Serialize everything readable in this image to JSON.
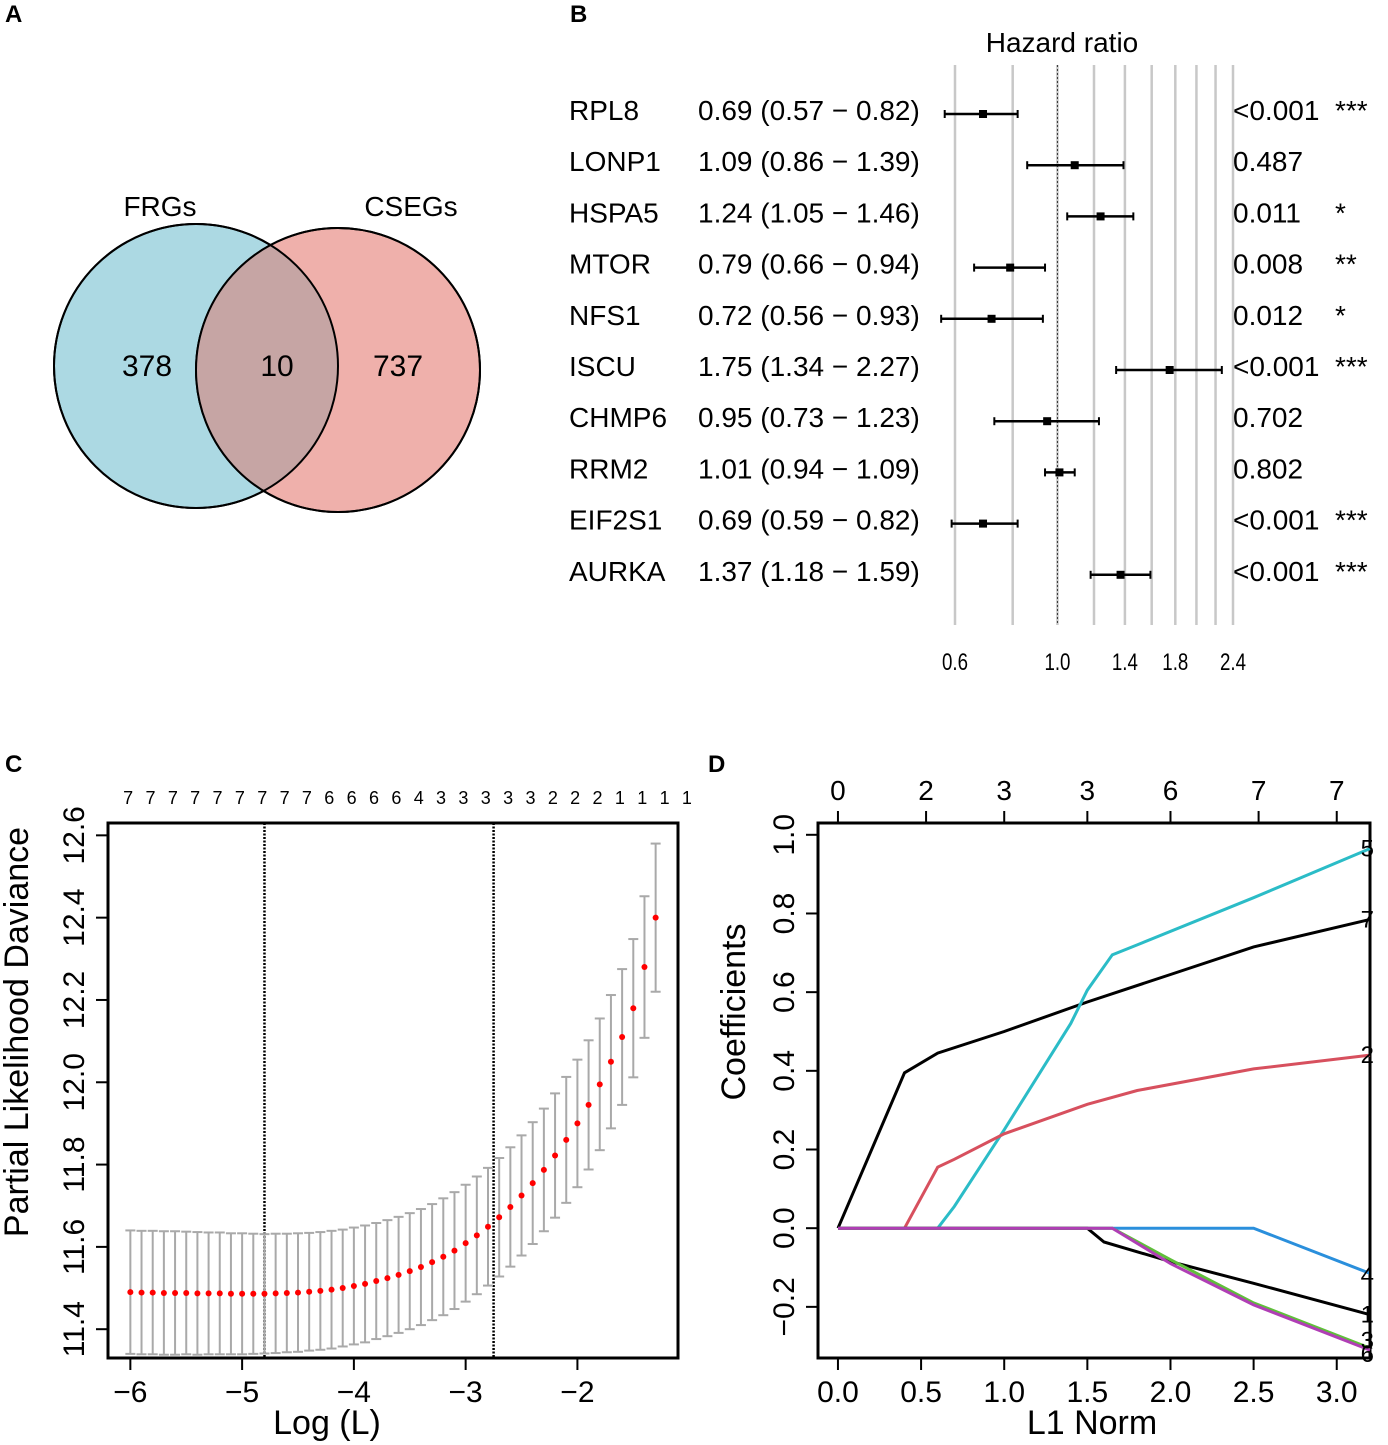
{
  "panels": {
    "A": {
      "letter": "A",
      "chart_data": {
        "type": "venn",
        "sets": [
          {
            "name": "FRGs",
            "unique_count": "378",
            "color": "#acd9e3"
          },
          {
            "name": "CSEGs",
            "unique_count": "737",
            "color": "#efb0ab"
          }
        ],
        "intersection_count": "10",
        "intersection_color": "#c6a5a4"
      }
    },
    "B": {
      "letter": "B",
      "chart_data": {
        "type": "forest",
        "title": "Hazard ratio",
        "reference_value": 1.0,
        "x_scale": "log",
        "xlim": [
          0.6,
          2.4
        ],
        "ticks": [
          0.6,
          1.0,
          1.4,
          1.8,
          2.4
        ],
        "tick_labels": [
          "0.6",
          "1.0",
          "1.4",
          "1.8",
          "2.4"
        ],
        "gridlines": [
          0.6,
          0.8,
          1.0,
          1.2,
          1.4,
          1.6,
          1.8,
          2.0,
          2.2,
          2.4
        ],
        "rows": [
          {
            "gene": "RPL8",
            "hr": 0.69,
            "lo": 0.57,
            "hi": 0.82,
            "label": "0.69 (0.57 − 0.82)",
            "p": "<0.001",
            "sig": "***"
          },
          {
            "gene": "LONP1",
            "hr": 1.09,
            "lo": 0.86,
            "hi": 1.39,
            "label": "1.09 (0.86 − 1.39)",
            "p": "0.487",
            "sig": ""
          },
          {
            "gene": "HSPA5",
            "hr": 1.24,
            "lo": 1.05,
            "hi": 1.46,
            "label": "1.24 (1.05 − 1.46)",
            "p": "0.011",
            "sig": "*"
          },
          {
            "gene": "MTOR",
            "hr": 0.79,
            "lo": 0.66,
            "hi": 0.94,
            "label": "0.79 (0.66 − 0.94)",
            "p": "0.008",
            "sig": "**"
          },
          {
            "gene": "NFS1",
            "hr": 0.72,
            "lo": 0.56,
            "hi": 0.93,
            "label": "0.72 (0.56 − 0.93)",
            "p": "0.012",
            "sig": "*"
          },
          {
            "gene": "ISCU",
            "hr": 1.75,
            "lo": 1.34,
            "hi": 2.27,
            "label": "1.75 (1.34 − 2.27)",
            "p": "<0.001",
            "sig": "***"
          },
          {
            "gene": "CHMP6",
            "hr": 0.95,
            "lo": 0.73,
            "hi": 1.23,
            "label": "0.95 (0.73 − 1.23)",
            "p": "0.702",
            "sig": ""
          },
          {
            "gene": "RRM2",
            "hr": 1.01,
            "lo": 0.94,
            "hi": 1.09,
            "label": "1.01 (0.94 − 1.09)",
            "p": "0.802",
            "sig": ""
          },
          {
            "gene": "EIF2S1",
            "hr": 0.69,
            "lo": 0.59,
            "hi": 0.82,
            "label": "0.69 (0.59 − 0.82)",
            "p": "<0.001",
            "sig": "***"
          },
          {
            "gene": "AURKA",
            "hr": 1.37,
            "lo": 1.18,
            "hi": 1.59,
            "label": "1.37 (1.18 − 1.59)",
            "p": "<0.001",
            "sig": "***"
          }
        ]
      }
    },
    "C": {
      "letter": "C",
      "chart_data": {
        "type": "scatter",
        "xlabel": "Log (L)",
        "ylabel": "Partial Likelihood Daviance",
        "xlim": [
          -6.2,
          -1.1
        ],
        "ylim": [
          11.33,
          12.63
        ],
        "xticks": [
          -6,
          -5,
          -4,
          -3,
          -2
        ],
        "xtick_labels": [
          "−6",
          "−5",
          "−4",
          "−3",
          "−2"
        ],
        "yticks": [
          11.4,
          11.6,
          11.8,
          12.0,
          12.2,
          12.4,
          12.6
        ],
        "ytick_labels": [
          "11.4",
          "11.6",
          "11.8",
          "12.0",
          "12.2",
          "12.4",
          "12.6"
        ],
        "top_counts": [
          "7",
          "7",
          "7",
          "7",
          "7",
          "7",
          "7",
          "7",
          "7",
          "6",
          "6",
          "6",
          "6",
          "4",
          "3",
          "3",
          "3",
          "3",
          "3",
          "2",
          "2",
          "2",
          "1",
          "1",
          "1",
          "1"
        ],
        "top_count_x": [
          -6.02,
          -5.82,
          -5.62,
          -5.42,
          -5.22,
          -5.02,
          -4.82,
          -4.62,
          -4.42,
          -4.22,
          -4.02,
          -3.82,
          -3.62,
          -3.42,
          -3.22,
          -3.02,
          -2.82,
          -2.62,
          -2.42,
          -2.22,
          -2.02,
          -1.82,
          -1.62,
          -1.42,
          -1.22,
          -1.02
        ],
        "vlines": [
          -4.8,
          -2.75
        ],
        "points_x": [
          -6.0,
          -5.9,
          -5.8,
          -5.7,
          -5.6,
          -5.5,
          -5.4,
          -5.3,
          -5.2,
          -5.1,
          -5.0,
          -4.9,
          -4.8,
          -4.7,
          -4.6,
          -4.5,
          -4.4,
          -4.3,
          -4.2,
          -4.1,
          -4.0,
          -3.9,
          -3.8,
          -3.7,
          -3.6,
          -3.5,
          -3.4,
          -3.3,
          -3.2,
          -3.1,
          -3.0,
          -2.9,
          -2.8,
          -2.7,
          -2.6,
          -2.5,
          -2.4,
          -2.3,
          -2.2,
          -2.1,
          -2.0,
          -1.9,
          -1.8,
          -1.7,
          -1.6,
          -1.5,
          -1.4,
          -1.3
        ],
        "points_y": [
          11.49,
          11.489,
          11.489,
          11.488,
          11.488,
          11.488,
          11.487,
          11.487,
          11.487,
          11.486,
          11.486,
          11.486,
          11.486,
          11.487,
          11.488,
          11.489,
          11.491,
          11.493,
          11.496,
          11.5,
          11.505,
          11.51,
          11.517,
          11.524,
          11.532,
          11.541,
          11.551,
          11.563,
          11.576,
          11.591,
          11.609,
          11.628,
          11.649,
          11.672,
          11.697,
          11.725,
          11.755,
          11.787,
          11.822,
          11.86,
          11.9,
          11.945,
          11.995,
          12.05,
          12.11,
          12.18,
          12.28,
          12.4
        ],
        "err_half": [
          0.15,
          0.15,
          0.15,
          0.15,
          0.15,
          0.149,
          0.149,
          0.148,
          0.148,
          0.147,
          0.147,
          0.146,
          0.145,
          0.145,
          0.144,
          0.144,
          0.143,
          0.143,
          0.143,
          0.142,
          0.142,
          0.142,
          0.141,
          0.141,
          0.141,
          0.141,
          0.141,
          0.141,
          0.142,
          0.142,
          0.142,
          0.143,
          0.143,
          0.144,
          0.145,
          0.146,
          0.148,
          0.149,
          0.151,
          0.153,
          0.155,
          0.157,
          0.16,
          0.162,
          0.165,
          0.168,
          0.172,
          0.18
        ],
        "point_color": "#ff0000",
        "errorbar_color": "#a9a9a9"
      }
    },
    "D": {
      "letter": "D",
      "chart_data": {
        "type": "line",
        "xlabel": "L1 Norm",
        "ylabel": "Coefficients",
        "xlim": [
          -0.12,
          3.2
        ],
        "ylim": [
          -0.33,
          1.03
        ],
        "xticks": [
          0.0,
          0.5,
          1.0,
          1.5,
          2.0,
          2.5,
          3.0
        ],
        "xtick_labels": [
          "0.0",
          "0.5",
          "1.0",
          "1.5",
          "2.0",
          "2.5",
          "3.0"
        ],
        "yticks": [
          -0.2,
          0.0,
          0.2,
          0.4,
          0.6,
          0.8,
          1.0
        ],
        "ytick_labels": [
          "−0.2",
          "0.0",
          "0.2",
          "0.4",
          "0.6",
          "0.8",
          "1.0"
        ],
        "top_ticks_x": [
          0.0,
          0.53,
          1.0,
          1.5,
          2.0,
          2.53,
          3.0
        ],
        "top_tick_labels": [
          "0",
          "2",
          "3",
          "3",
          "6",
          "7",
          "7"
        ],
        "series": [
          {
            "name": "7",
            "color": "#000000",
            "x": [
              0.0,
              0.4,
              0.6,
              1.0,
              1.5,
              2.0,
              2.5,
              3.2
            ],
            "y": [
              0.0,
              0.395,
              0.445,
              0.5,
              0.575,
              0.645,
              0.715,
              0.785
            ]
          },
          {
            "name": "5",
            "color": "#2bbcc7",
            "x": [
              0.6,
              0.7,
              1.0,
              1.4,
              1.5,
              1.65,
              1.8,
              2.5,
              3.2
            ],
            "y": [
              0.0,
              0.055,
              0.25,
              0.52,
              0.605,
              0.695,
              0.72,
              0.84,
              0.965
            ]
          },
          {
            "name": "2",
            "color": "#d7505e",
            "x": [
              0.4,
              0.6,
              0.7,
              1.0,
              1.5,
              1.8,
              2.5,
              3.2
            ],
            "y": [
              0.0,
              0.155,
              0.175,
              0.24,
              0.315,
              0.35,
              0.405,
              0.44
            ]
          },
          {
            "name": "4",
            "color": "#2a8fdc",
            "x": [
              0.0,
              2.5,
              3.2
            ],
            "y": [
              0.0,
              0.0,
              -0.115
            ]
          },
          {
            "name": "1",
            "color": "#000000",
            "x": [
              0.0,
              1.5,
              1.6,
              2.0,
              2.5,
              3.2
            ],
            "y": [
              0.0,
              0.0,
              -0.035,
              -0.085,
              -0.14,
              -0.22
            ]
          },
          {
            "name": "3",
            "color": "#5fbf3a",
            "x": [
              0.0,
              1.65,
              2.0,
              2.5,
              3.2
            ],
            "y": [
              0.0,
              0.0,
              -0.08,
              -0.19,
              -0.305
            ]
          },
          {
            "name": "6",
            "color": "#b03eb5",
            "x": [
              0.0,
              1.65,
              2.0,
              2.5,
              3.2
            ],
            "y": [
              0.0,
              0.0,
              -0.09,
              -0.195,
              -0.31
            ]
          }
        ],
        "end_labels": [
          "5",
          "7",
          "2",
          "4",
          "1",
          "3",
          "6"
        ]
      }
    }
  }
}
